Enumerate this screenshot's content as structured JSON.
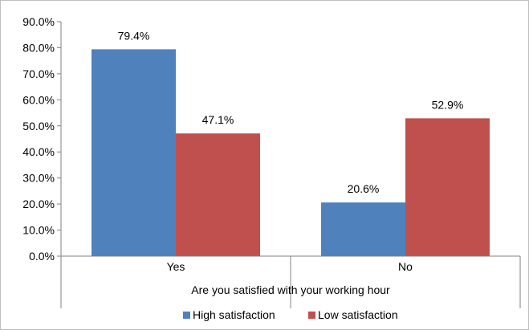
{
  "chart_data": {
    "type": "bar",
    "title": "",
    "xlabel": "Are you satisfied with your working hour",
    "ylabel": "",
    "categories": [
      "Yes",
      "No"
    ],
    "series": [
      {
        "name": "High satisfaction",
        "color": "#4f81bd",
        "values": [
          79.4,
          20.6
        ],
        "labels": [
          "79.4%",
          "20.6%"
        ]
      },
      {
        "name": "Low satisfaction",
        "color": "#c0504d",
        "values": [
          47.1,
          52.9
        ],
        "labels": [
          "47.1%",
          "52.9%"
        ]
      }
    ],
    "ylim": [
      0,
      90
    ],
    "yticks": [
      0,
      10,
      20,
      30,
      40,
      50,
      60,
      70,
      80,
      90
    ],
    "ytick_labels": [
      "0.0%",
      "10.0%",
      "20.0%",
      "30.0%",
      "40.0%",
      "50.0%",
      "60.0%",
      "70.0%",
      "80.0%",
      "90.0%"
    ],
    "grid": false,
    "legend_position": "bottom"
  }
}
